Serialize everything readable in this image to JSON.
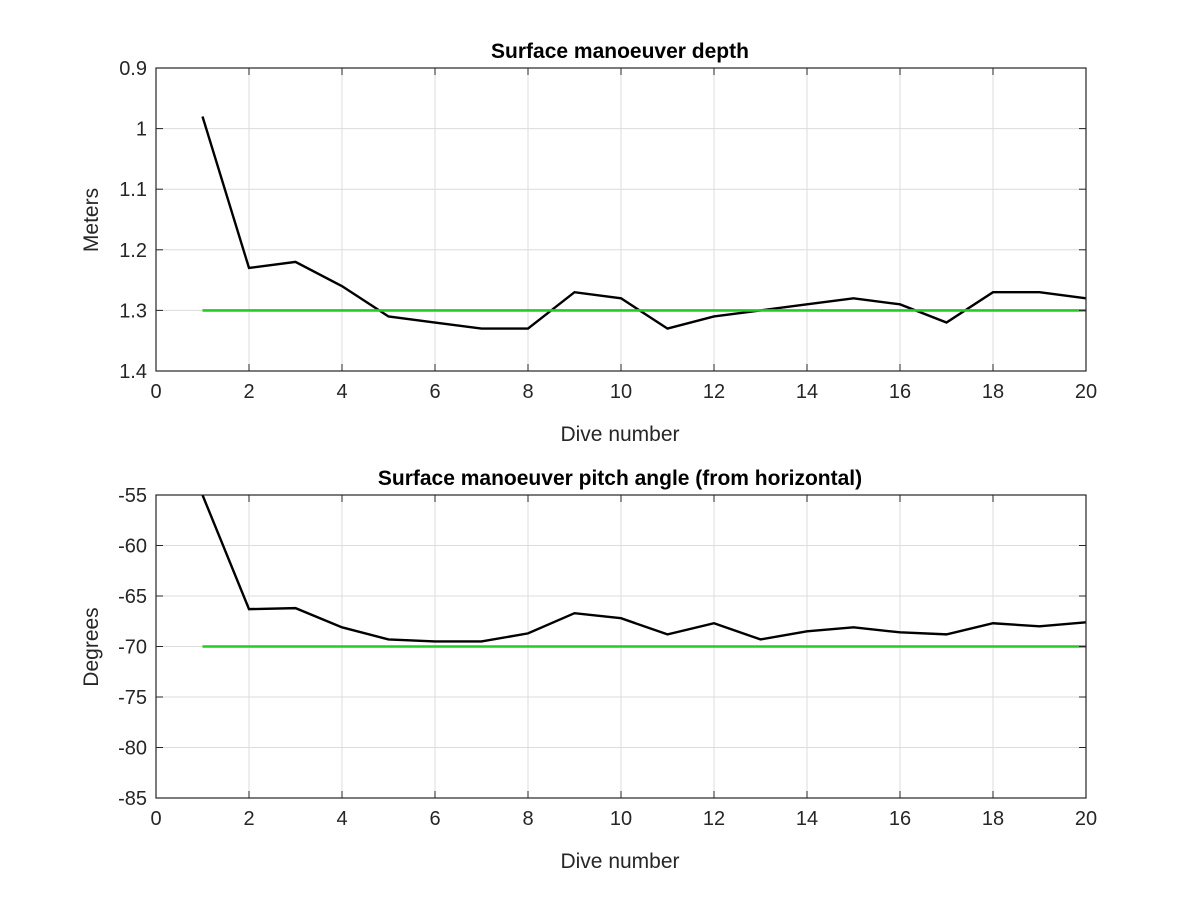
{
  "chart_data": [
    {
      "type": "line",
      "title": "Surface manoeuver depth",
      "xlabel": "Dive number",
      "ylabel": "Meters",
      "xlim": [
        0,
        20
      ],
      "ylim": [
        0.9,
        1.4
      ],
      "y_reversed": true,
      "grid": true,
      "x_ticks": [
        0,
        2,
        4,
        6,
        8,
        10,
        12,
        14,
        16,
        18,
        20
      ],
      "x_tick_labels": [
        "0",
        "2",
        "4",
        "6",
        "8",
        "10",
        "12",
        "14",
        "16",
        "18",
        "20"
      ],
      "y_ticks": [
        0.9,
        1.0,
        1.1,
        1.2,
        1.3,
        1.4
      ],
      "y_tick_labels": [
        "0.9",
        "1",
        "1.1",
        "1.2",
        "1.3",
        "1.4"
      ],
      "series": [
        {
          "color": "#000000",
          "x": [
            1,
            2,
            3,
            4,
            5,
            6,
            7,
            8,
            9,
            10,
            11,
            12,
            13,
            14,
            15,
            16,
            17,
            18,
            19,
            20
          ],
          "y": [
            0.98,
            1.23,
            1.22,
            1.26,
            1.31,
            1.32,
            1.33,
            1.33,
            1.27,
            1.28,
            1.33,
            1.31,
            1.3,
            1.29,
            1.28,
            1.29,
            1.32,
            1.27,
            1.27,
            1.28
          ]
        },
        {
          "color": "#22cc22",
          "x": [
            1,
            20
          ],
          "y": [
            1.3,
            1.3
          ]
        }
      ]
    },
    {
      "type": "line",
      "title": "Surface manoeuver pitch angle (from horizontal)",
      "xlabel": "Dive number",
      "ylabel": "Degrees",
      "xlim": [
        0,
        20
      ],
      "ylim": [
        -85,
        -55
      ],
      "y_reversed": false,
      "grid": true,
      "x_ticks": [
        0,
        2,
        4,
        6,
        8,
        10,
        12,
        14,
        16,
        18,
        20
      ],
      "x_tick_labels": [
        "0",
        "2",
        "4",
        "6",
        "8",
        "10",
        "12",
        "14",
        "16",
        "18",
        "20"
      ],
      "y_ticks": [
        -85,
        -80,
        -75,
        -70,
        -65,
        -60,
        -55
      ],
      "y_tick_labels": [
        "-85",
        "-80",
        "-75",
        "-70",
        "-65",
        "-60",
        "-55"
      ],
      "series": [
        {
          "color": "#000000",
          "x": [
            1,
            2,
            3,
            4,
            5,
            6,
            7,
            8,
            9,
            10,
            11,
            12,
            13,
            14,
            15,
            16,
            17,
            18,
            19,
            20
          ],
          "y": [
            -55,
            -66.3,
            -66.2,
            -68.1,
            -69.3,
            -69.5,
            -69.5,
            -68.7,
            -66.7,
            -67.2,
            -68.8,
            -67.7,
            -69.3,
            -68.5,
            -68.1,
            -68.6,
            -68.8,
            -67.7,
            -68.0,
            -67.6
          ]
        },
        {
          "color": "#22cc22",
          "x": [
            1,
            20
          ],
          "y": [
            -70,
            -70
          ]
        }
      ]
    }
  ]
}
